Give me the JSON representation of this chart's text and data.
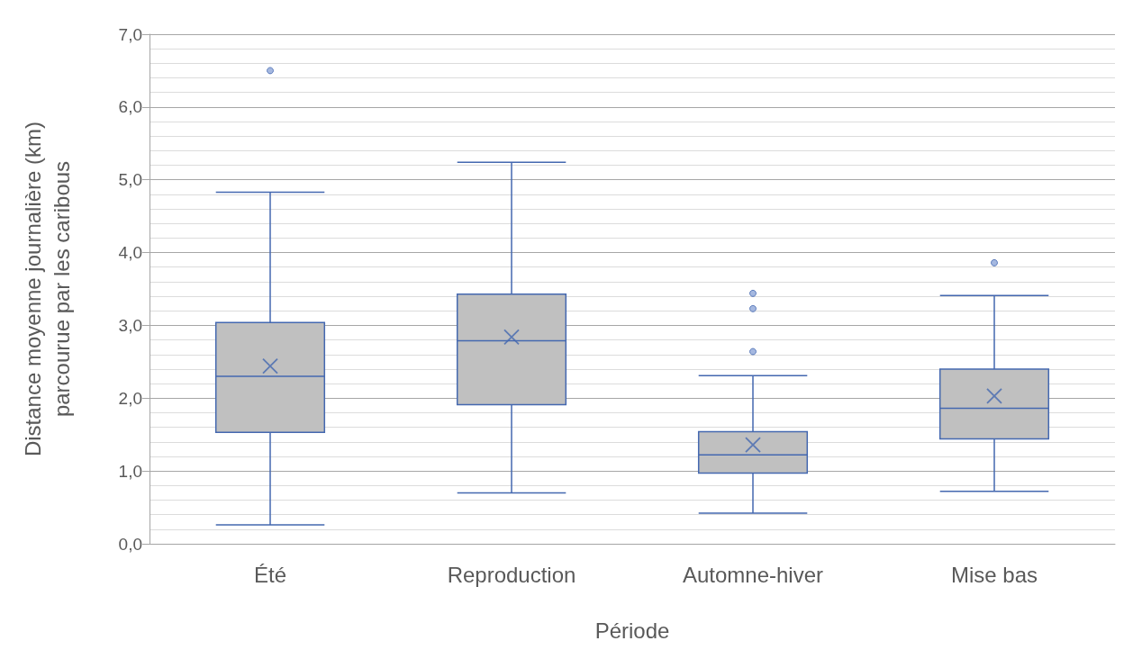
{
  "chart_data": {
    "type": "box",
    "xlabel": "Période",
    "ylabel": "Distance moyenne journalière (km)\nparcourue par les caribous",
    "categories": [
      "Été",
      "Reproduction",
      "Automne-hiver",
      "Mise bas"
    ],
    "boxes": [
      {
        "low": 0.26,
        "q1": 1.53,
        "median": 2.3,
        "q3": 3.04,
        "high": 4.83,
        "mean": 2.44,
        "outliers": [
          6.5
        ]
      },
      {
        "low": 0.7,
        "q1": 1.91,
        "median": 2.79,
        "q3": 3.43,
        "high": 5.24,
        "mean": 2.84
      },
      {
        "low": 0.42,
        "q1": 0.97,
        "median": 1.22,
        "q3": 1.54,
        "high": 2.31,
        "mean": 1.36,
        "outliers": [
          3.44,
          3.23,
          2.64
        ]
      },
      {
        "low": 0.72,
        "q1": 1.44,
        "median": 1.86,
        "q3": 2.4,
        "high": 3.41,
        "mean": 2.03,
        "outliers": [
          3.86
        ]
      }
    ],
    "color": "#4468b0",
    "ylim": [
      0,
      7
    ],
    "yticks": [
      {
        "value": 0,
        "label": "0,0"
      },
      {
        "value": 0.2,
        "label": null
      },
      {
        "value": 0.4,
        "label": null
      },
      {
        "value": 0.6,
        "label": null
      },
      {
        "value": 0.8,
        "label": null
      },
      {
        "value": 1,
        "label": "1,0"
      },
      {
        "value": 1.2,
        "label": null
      },
      {
        "value": 1.4,
        "label": null
      },
      {
        "value": 1.6,
        "label": null
      },
      {
        "value": 1.8,
        "label": null
      },
      {
        "value": 2,
        "label": "2,0"
      },
      {
        "value": 2.2,
        "label": null
      },
      {
        "value": 2.4,
        "label": null
      },
      {
        "value": 2.6,
        "label": null
      },
      {
        "value": 2.8,
        "label": null
      },
      {
        "value": 3,
        "label": "3,0"
      },
      {
        "value": 3.2,
        "label": null
      },
      {
        "value": 3.4,
        "label": null
      },
      {
        "value": 3.6,
        "label": null
      },
      {
        "value": 3.8,
        "label": null
      },
      {
        "value": 4,
        "label": "4,0"
      },
      {
        "value": 4.2,
        "label": null
      },
      {
        "value": 4.4,
        "label": null
      },
      {
        "value": 4.6,
        "label": null
      },
      {
        "value": 4.8,
        "label": null
      },
      {
        "value": 5,
        "label": "5,0"
      },
      {
        "value": 5.2,
        "label": null
      },
      {
        "value": 5.4,
        "label": null
      },
      {
        "value": 5.6,
        "label": null
      },
      {
        "value": 5.8,
        "label": null
      },
      {
        "value": 6,
        "label": "6,0"
      },
      {
        "value": 6.2,
        "label": null
      },
      {
        "value": 6.4,
        "label": null
      },
      {
        "value": 6.6,
        "label": null
      },
      {
        "value": 6.8,
        "label": null
      },
      {
        "value": 7,
        "label": "7,0"
      }
    ],
    "grid": true
  }
}
